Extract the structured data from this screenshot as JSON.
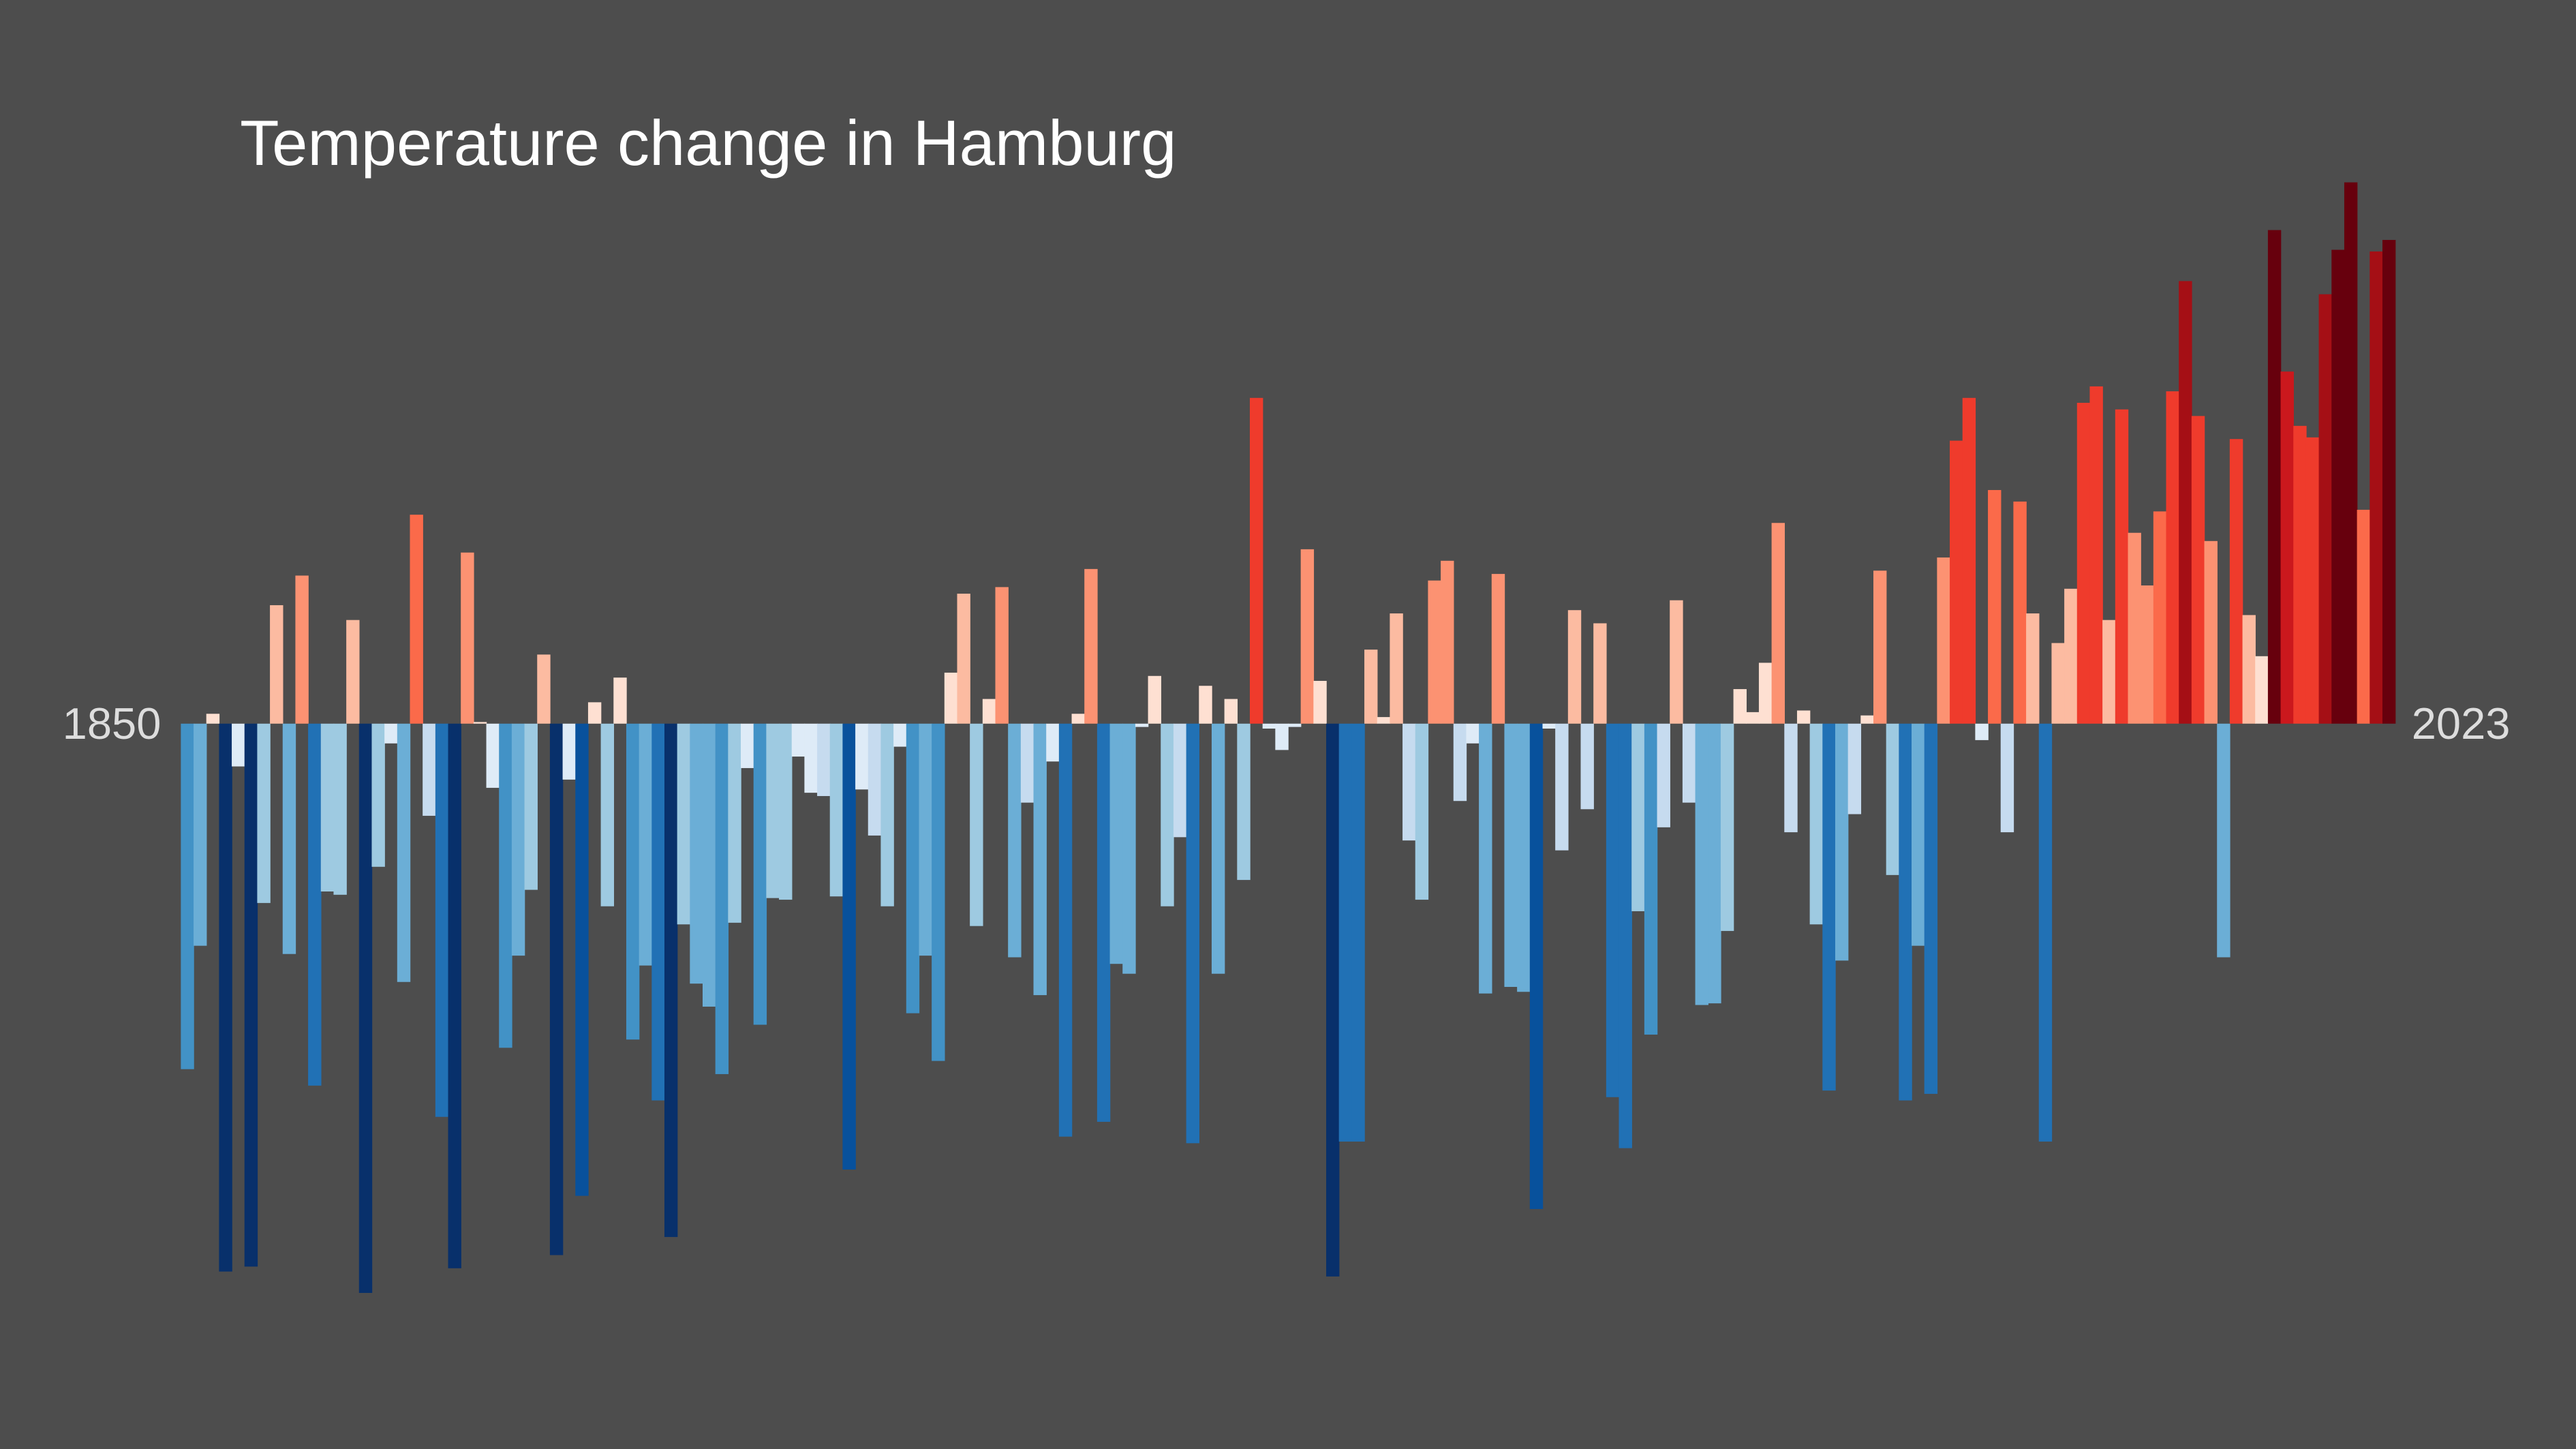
{
  "chart_data": {
    "type": "bar",
    "title": "Temperature change in Hamburg",
    "categories": [
      "1850",
      null,
      null,
      null,
      null,
      null,
      null,
      null,
      null,
      null,
      null,
      null,
      null,
      null,
      null,
      null,
      null,
      null,
      null,
      null,
      null,
      null,
      null,
      null,
      null,
      null,
      null,
      null,
      null,
      null,
      null,
      null,
      null,
      null,
      null,
      null,
      null,
      null,
      null,
      null,
      null,
      null,
      null,
      null,
      null,
      null,
      null,
      null,
      null,
      null,
      null,
      null,
      null,
      null,
      null,
      null,
      null,
      null,
      null,
      null,
      null,
      null,
      null,
      null,
      null,
      null,
      null,
      null,
      null,
      null,
      null,
      null,
      null,
      null,
      null,
      null,
      null,
      null,
      null,
      null,
      null,
      null,
      null,
      null,
      null,
      null,
      null,
      null,
      null,
      null,
      null,
      null,
      null,
      null,
      null,
      null,
      null,
      null,
      null,
      null,
      null,
      null,
      null,
      null,
      null,
      null,
      null,
      null,
      null,
      null,
      null,
      null,
      null,
      null,
      null,
      null,
      null,
      null,
      null,
      null,
      null,
      null,
      null,
      null,
      null,
      null,
      null,
      null,
      null,
      null,
      null,
      null,
      null,
      null,
      null,
      null,
      null,
      null,
      null,
      null,
      null,
      null,
      null,
      null,
      null,
      null,
      null,
      null,
      null,
      null,
      null,
      null,
      null,
      null,
      null,
      null,
      null,
      null,
      null,
      null,
      null,
      null,
      null,
      null,
      null,
      null,
      null,
      null,
      null,
      null,
      null,
      null,
      null,
      "2023"
    ],
    "values": [
      -2.1,
      -1.35,
      0.06,
      -3.33,
      -0.26,
      -3.3,
      -1.09,
      0.72,
      -1.4,
      0.9,
      -2.2,
      -1.02,
      -1.04,
      0.63,
      -3.46,
      -0.87,
      -0.12,
      -1.57,
      1.27,
      -0.56,
      -2.39,
      -3.31,
      1.04,
      0.01,
      -0.39,
      -1.97,
      -1.41,
      -1.01,
      0.42,
      -3.23,
      -0.34,
      -2.87,
      0.13,
      -1.11,
      0.28,
      -1.92,
      -1.47,
      -2.29,
      -3.12,
      -1.22,
      -1.58,
      -1.72,
      -2.13,
      -1.21,
      -0.27,
      -1.83,
      -1.06,
      -1.07,
      -0.2,
      -0.42,
      -0.44,
      -1.05,
      -2.71,
      -0.4,
      -0.68,
      -1.11,
      -0.14,
      -1.76,
      -1.41,
      -2.05,
      0.31,
      0.79,
      -1.23,
      0.15,
      0.83,
      -1.42,
      -0.48,
      -1.65,
      -0.23,
      -2.51,
      0.06,
      0.94,
      -2.42,
      -1.46,
      -1.52,
      -0.02,
      0.29,
      -1.11,
      -0.69,
      -2.55,
      0.23,
      -1.52,
      0.15,
      -0.95,
      1.98,
      -0.03,
      -0.16,
      -0.02,
      1.06,
      0.26,
      -3.36,
      -2.54,
      -2.54,
      0.45,
      0.04,
      0.67,
      -0.71,
      -1.07,
      0.87,
      0.99,
      -0.47,
      -0.12,
      -1.64,
      0.91,
      -1.6,
      -1.63,
      -2.95,
      -0.03,
      -0.77,
      0.69,
      -0.52,
      0.61,
      -2.27,
      -2.58,
      -1.14,
      -1.89,
      -0.63,
      0.75,
      -0.48,
      -1.71,
      -1.7,
      -1.26,
      0.21,
      0.07,
      0.37,
      1.22,
      -0.66,
      0.08,
      -1.22,
      -2.23,
      -1.44,
      -0.55,
      0.05,
      0.93,
      -0.92,
      -2.29,
      -1.35,
      -2.25,
      1.01,
      1.72,
      1.98,
      -0.1,
      1.42,
      -0.66,
      1.35,
      0.67,
      -2.54,
      0.49,
      0.82,
      1.95,
      2.05,
      0.63,
      1.91,
      1.16,
      0.84,
      1.29,
      2.02,
      2.69,
      1.87,
      1.11,
      -1.42,
      1.73,
      0.66,
      0.41,
      3.0,
      2.14,
      1.81,
      1.74,
      2.61,
      2.88,
      3.29,
      1.3,
      2.87,
      2.94
    ],
    "colors": [
      "#08306b",
      "#08519c",
      "#2171b5",
      "#4292c6",
      "#6baed6",
      "#9ecae1",
      "#c6dbef",
      "#deebf7",
      "#fee0d2",
      "#fcbba1",
      "#fc9272",
      "#fb6a4a",
      "#ef3b2c",
      "#cb181d",
      "#a50f15",
      "#67000d"
    ]
  }
}
